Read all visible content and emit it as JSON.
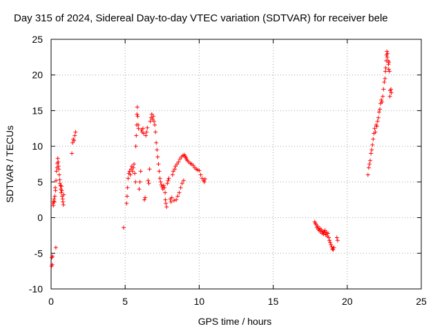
{
  "chart_data": {
    "type": "scatter",
    "title": "Day 315 of 2024, Sidereal Day-to-day VTEC variation (SDTVAR) for receiver bele",
    "xlabel": "GPS time / hours",
    "ylabel": "SDTVAR / TECUs",
    "xlim": [
      0,
      25
    ],
    "ylim": [
      -10,
      25
    ],
    "xticks": [
      0,
      5,
      10,
      15,
      20,
      25
    ],
    "yticks": [
      -10,
      -5,
      0,
      5,
      10,
      15,
      20,
      25
    ],
    "grid": true,
    "marker": "+",
    "marker_color": "#ff0000",
    "series": [
      {
        "name": "SDTVAR",
        "points": [
          [
            0.03,
            -6.8
          ],
          [
            0.05,
            -5.6
          ],
          [
            0.08,
            -6.6
          ],
          [
            0.1,
            -5.4
          ],
          [
            0.12,
            2.0
          ],
          [
            0.15,
            1.7
          ],
          [
            0.18,
            2.3
          ],
          [
            0.2,
            2.6
          ],
          [
            0.22,
            2.2
          ],
          [
            0.25,
            3.0
          ],
          [
            0.28,
            4.2
          ],
          [
            0.3,
            3.8
          ],
          [
            0.32,
            -4.2
          ],
          [
            0.33,
            5.2
          ],
          [
            0.36,
            6.5
          ],
          [
            0.4,
            7.0
          ],
          [
            0.42,
            7.6
          ],
          [
            0.45,
            8.3
          ],
          [
            0.48,
            7.8
          ],
          [
            0.5,
            7.2
          ],
          [
            0.52,
            6.8
          ],
          [
            0.55,
            6.0
          ],
          [
            0.58,
            5.3
          ],
          [
            0.6,
            4.8
          ],
          [
            0.63,
            4.5
          ],
          [
            0.65,
            4.0
          ],
          [
            0.68,
            3.5
          ],
          [
            0.7,
            4.4
          ],
          [
            0.73,
            3.8
          ],
          [
            0.75,
            3.0
          ],
          [
            0.78,
            2.6
          ],
          [
            0.8,
            2.2
          ],
          [
            0.83,
            1.8
          ],
          [
            0.85,
            3.2
          ],
          [
            1.4,
            9.0
          ],
          [
            1.45,
            10.5
          ],
          [
            1.5,
            11.0
          ],
          [
            1.55,
            10.8
          ],
          [
            1.6,
            11.5
          ],
          [
            1.65,
            12.0
          ],
          [
            4.9,
            -1.4
          ],
          [
            5.1,
            2.0
          ],
          [
            5.13,
            3.0
          ],
          [
            5.16,
            4.2
          ],
          [
            5.2,
            5.5
          ],
          [
            5.25,
            6.2
          ],
          [
            5.3,
            6.5
          ],
          [
            5.35,
            6.0
          ],
          [
            5.4,
            6.8
          ],
          [
            5.45,
            7.2
          ],
          [
            5.5,
            6.5
          ],
          [
            5.55,
            7.0
          ],
          [
            5.6,
            7.5
          ],
          [
            5.65,
            6.2
          ],
          [
            5.7,
            5.0
          ],
          [
            5.72,
            10.0
          ],
          [
            5.75,
            11.5
          ],
          [
            5.78,
            13.0
          ],
          [
            5.8,
            14.5
          ],
          [
            5.82,
            15.5
          ],
          [
            5.85,
            14.2
          ],
          [
            5.88,
            13.0
          ],
          [
            5.9,
            12.5
          ],
          [
            5.95,
            4.0
          ],
          [
            6.0,
            5.0
          ],
          [
            6.05,
            6.5
          ],
          [
            6.1,
            12.3
          ],
          [
            6.15,
            12.0
          ],
          [
            6.2,
            12.5
          ],
          [
            6.25,
            11.8
          ],
          [
            6.3,
            2.5
          ],
          [
            6.35,
            2.8
          ],
          [
            6.4,
            11.5
          ],
          [
            6.45,
            12.0
          ],
          [
            6.5,
            12.6
          ],
          [
            6.55,
            5.2
          ],
          [
            6.6,
            4.8
          ],
          [
            6.65,
            6.8
          ],
          [
            6.7,
            13.5
          ],
          [
            6.75,
            14.0
          ],
          [
            6.8,
            14.5
          ],
          [
            6.85,
            13.8
          ],
          [
            6.9,
            14.2
          ],
          [
            6.95,
            13.5
          ],
          [
            7.0,
            13.0
          ],
          [
            7.05,
            12.0
          ],
          [
            7.1,
            10.5
          ],
          [
            7.15,
            9.5
          ],
          [
            7.2,
            8.5
          ],
          [
            7.25,
            7.5
          ],
          [
            7.3,
            6.5
          ],
          [
            7.35,
            5.5
          ],
          [
            7.4,
            5.0
          ],
          [
            7.45,
            4.6
          ],
          [
            7.5,
            4.3
          ],
          [
            7.55,
            4.0
          ],
          [
            7.6,
            4.5
          ],
          [
            7.65,
            4.2
          ],
          [
            7.7,
            3.5
          ],
          [
            7.72,
            2.5
          ],
          [
            7.75,
            2.0
          ],
          [
            7.8,
            1.5
          ],
          [
            7.85,
            4.8
          ],
          [
            7.9,
            5.2
          ],
          [
            7.95,
            5.5
          ],
          [
            8.05,
            2.6
          ],
          [
            8.1,
            2.2
          ],
          [
            8.15,
            2.8
          ],
          [
            8.2,
            6.0
          ],
          [
            8.25,
            6.5
          ],
          [
            8.3,
            2.4
          ],
          [
            8.35,
            6.8
          ],
          [
            8.4,
            7.2
          ],
          [
            8.45,
            2.5
          ],
          [
            8.5,
            7.5
          ],
          [
            8.55,
            3.0
          ],
          [
            8.6,
            7.8
          ],
          [
            8.65,
            3.5
          ],
          [
            8.7,
            8.2
          ],
          [
            8.75,
            4.2
          ],
          [
            8.8,
            8.5
          ],
          [
            8.85,
            4.8
          ],
          [
            8.9,
            8.7
          ],
          [
            8.95,
            5.2
          ],
          [
            9.0,
            8.8
          ],
          [
            9.05,
            8.6
          ],
          [
            9.1,
            8.4
          ],
          [
            9.15,
            8.2
          ],
          [
            9.2,
            8.0
          ],
          [
            9.3,
            7.8
          ],
          [
            9.4,
            7.6
          ],
          [
            9.5,
            7.5
          ],
          [
            9.6,
            7.3
          ],
          [
            9.7,
            7.0
          ],
          [
            9.8,
            6.8
          ],
          [
            9.9,
            6.7
          ],
          [
            10.0,
            6.6
          ],
          [
            10.1,
            6.0
          ],
          [
            10.2,
            5.5
          ],
          [
            10.3,
            5.2
          ],
          [
            10.35,
            5.0
          ],
          [
            10.4,
            5.4
          ],
          [
            17.8,
            -0.6
          ],
          [
            17.85,
            -0.8
          ],
          [
            17.9,
            -1.0
          ],
          [
            17.95,
            -1.4
          ],
          [
            18.0,
            -1.2
          ],
          [
            18.05,
            -1.6
          ],
          [
            18.1,
            -1.8
          ],
          [
            18.15,
            -1.5
          ],
          [
            18.2,
            -2.0
          ],
          [
            18.25,
            -1.7
          ],
          [
            18.3,
            -2.2
          ],
          [
            18.35,
            -1.9
          ],
          [
            18.4,
            -2.3
          ],
          [
            18.45,
            -2.0
          ],
          [
            18.5,
            -1.8
          ],
          [
            18.55,
            -2.4
          ],
          [
            18.6,
            -2.1
          ],
          [
            18.65,
            -2.6
          ],
          [
            18.7,
            -2.2
          ],
          [
            18.75,
            -2.8
          ],
          [
            18.8,
            -3.2
          ],
          [
            18.85,
            -3.5
          ],
          [
            18.9,
            -3.8
          ],
          [
            18.95,
            -4.1
          ],
          [
            19.0,
            -4.4
          ],
          [
            19.05,
            -4.5
          ],
          [
            19.1,
            -4.2
          ],
          [
            19.3,
            -2.8
          ],
          [
            19.35,
            -3.2
          ],
          [
            21.4,
            6.0
          ],
          [
            21.45,
            7.0
          ],
          [
            21.5,
            7.5
          ],
          [
            21.55,
            8.0
          ],
          [
            21.6,
            9.0
          ],
          [
            21.65,
            9.5
          ],
          [
            21.7,
            10.2
          ],
          [
            21.75,
            11.0
          ],
          [
            21.8,
            11.8
          ],
          [
            21.85,
            12.5
          ],
          [
            21.9,
            12.0
          ],
          [
            21.95,
            13.0
          ],
          [
            22.0,
            12.8
          ],
          [
            22.05,
            13.5
          ],
          [
            22.1,
            14.0
          ],
          [
            22.15,
            14.8
          ],
          [
            22.2,
            15.2
          ],
          [
            22.25,
            16.0
          ],
          [
            22.3,
            16.5
          ],
          [
            22.35,
            16.2
          ],
          [
            22.4,
            17.0
          ],
          [
            22.45,
            18.0
          ],
          [
            22.5,
            19.0
          ],
          [
            22.55,
            19.5
          ],
          [
            22.58,
            20.5
          ],
          [
            22.6,
            21.0
          ],
          [
            22.63,
            22.0
          ],
          [
            22.65,
            22.8
          ],
          [
            22.68,
            23.3
          ],
          [
            22.7,
            22.5
          ],
          [
            22.72,
            23.0
          ],
          [
            22.75,
            22.0
          ],
          [
            22.78,
            21.5
          ],
          [
            22.8,
            20.8
          ],
          [
            22.82,
            21.8
          ],
          [
            22.85,
            20.5
          ],
          [
            22.88,
            17.0
          ],
          [
            22.9,
            17.8
          ],
          [
            22.95,
            18.0
          ],
          [
            22.98,
            17.5
          ]
        ]
      }
    ]
  }
}
